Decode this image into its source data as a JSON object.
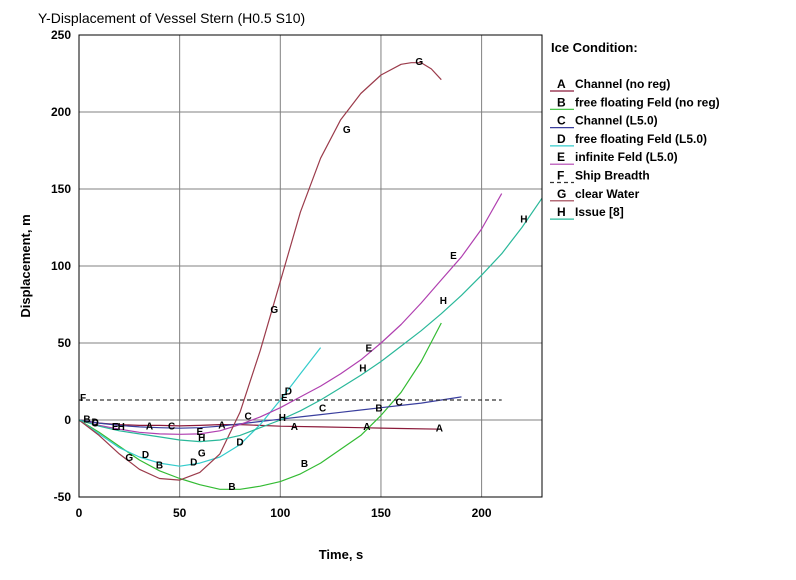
{
  "chart_data": {
    "type": "line",
    "title": "Y-Displacement of Vessel Stern (H0.5 S10)",
    "xlabel": "Time, s",
    "ylabel": "Displacement, m",
    "xlim": [
      0,
      230
    ],
    "ylim": [
      -50,
      250
    ],
    "xticks": [
      0,
      50,
      100,
      150,
      200
    ],
    "yticks": [
      -50,
      0,
      50,
      100,
      150,
      200,
      250
    ],
    "x_tick_labels": [
      "0",
      "50",
      "100",
      "150",
      "200"
    ],
    "y_tick_labels": [
      "-50",
      "0",
      "50",
      "100",
      "150",
      "200",
      "250"
    ],
    "grid": true,
    "legend_position": "right",
    "legend_title": "Ice Condition:",
    "series": [
      {
        "name": "Channel (no reg)",
        "marker": "A",
        "color": "#8b1a3a",
        "dash": "",
        "x": [
          0,
          10,
          20,
          30,
          40,
          50,
          60,
          70,
          80,
          100,
          120,
          140,
          160,
          180
        ],
        "y": [
          0,
          -2,
          -3,
          -3.5,
          -3.5,
          -3.8,
          -3.5,
          -3,
          -3,
          -4,
          -4.5,
          -5,
          -5.5,
          -6
        ]
      },
      {
        "name": "free floating Feld (no reg)",
        "marker": "B",
        "color": "#33bb33",
        "dash": "",
        "x": [
          0,
          10,
          20,
          30,
          40,
          50,
          60,
          70,
          80,
          90,
          100,
          110,
          120,
          130,
          140,
          150,
          160,
          170,
          180
        ],
        "y": [
          0,
          -8,
          -17,
          -26,
          -33,
          -38,
          -42,
          -45,
          -45,
          -43,
          -40,
          -35,
          -28,
          -19,
          -10,
          3,
          18,
          38,
          63
        ]
      },
      {
        "name": "Channel (L5.0)",
        "marker": "C",
        "color": "#3a3f9e",
        "dash": "",
        "x": [
          0,
          10,
          20,
          30,
          40,
          50,
          60,
          70,
          80,
          90,
          100,
          110,
          120,
          130,
          140,
          150,
          160,
          170,
          180,
          190
        ],
        "y": [
          0,
          -2,
          -3.5,
          -4.5,
          -5,
          -5.3,
          -5,
          -4,
          -2.5,
          -1,
          0.5,
          2,
          3.5,
          5,
          6.5,
          8,
          9.5,
          11,
          13,
          15
        ]
      },
      {
        "name": "free floating Feld (L5.0)",
        "marker": "D",
        "color": "#33cccc",
        "dash": "",
        "x": [
          0,
          10,
          20,
          30,
          40,
          50,
          60,
          70,
          80,
          90,
          100,
          110,
          120
        ],
        "y": [
          0,
          -9,
          -18,
          -24,
          -28,
          -30,
          -28,
          -24,
          -16,
          -3,
          13,
          30,
          47
        ]
      },
      {
        "name": "infinite Feld (L5.0)",
        "marker": "E",
        "color": "#b040b0",
        "dash": "",
        "x": [
          0,
          10,
          20,
          30,
          40,
          50,
          60,
          70,
          80,
          90,
          100,
          110,
          120,
          130,
          140,
          150,
          160,
          170,
          180,
          190,
          200,
          210
        ],
        "y": [
          0,
          -3.5,
          -6,
          -8,
          -9,
          -9.3,
          -9,
          -7,
          -3,
          2,
          8,
          15,
          22,
          30,
          39,
          50,
          62,
          76,
          91,
          106,
          124,
          147
        ]
      },
      {
        "name": "Ship Breadth",
        "marker": "F",
        "color": "#333333",
        "dash": "4,3",
        "x": [
          0,
          210
        ],
        "y": [
          13,
          13
        ]
      },
      {
        "name": "clear Water",
        "marker": "G",
        "color": "#9b3b4b",
        "dash": "",
        "x": [
          0,
          10,
          20,
          30,
          40,
          50,
          60,
          70,
          80,
          90,
          100,
          110,
          120,
          130,
          140,
          150,
          160,
          165,
          170,
          175,
          180
        ],
        "y": [
          0,
          -10,
          -22,
          -32,
          -38,
          -39,
          -34,
          -22,
          5,
          45,
          90,
          135,
          170,
          195,
          212,
          224,
          231,
          232,
          232,
          228,
          221
        ]
      },
      {
        "name": "Issue [8]",
        "marker": "H",
        "color": "#2ab89a",
        "dash": "",
        "x": [
          0,
          10,
          20,
          30,
          40,
          50,
          60,
          70,
          80,
          90,
          100,
          110,
          120,
          130,
          140,
          150,
          160,
          170,
          180,
          190,
          200,
          210,
          220,
          230
        ],
        "y": [
          0,
          -4,
          -7,
          -9,
          -11,
          -13,
          -14,
          -13,
          -10,
          -5,
          0,
          6,
          13,
          21,
          29,
          38,
          48,
          58,
          69,
          81,
          94,
          108,
          125,
          144
        ]
      }
    ],
    "markers": [
      {
        "s": 0,
        "text": "A",
        "x": 35,
        "y": -3.5
      },
      {
        "s": 0,
        "text": "A",
        "x": 71,
        "y": -3
      },
      {
        "s": 0,
        "text": "A",
        "x": 107,
        "y": -4
      },
      {
        "s": 0,
        "text": "A",
        "x": 143,
        "y": -4
      },
      {
        "s": 0,
        "text": "A",
        "x": 179,
        "y": -5
      },
      {
        "s": 1,
        "text": "B",
        "x": 4,
        "y": 1
      },
      {
        "s": 1,
        "text": "B",
        "x": 40,
        "y": -29
      },
      {
        "s": 1,
        "text": "B",
        "x": 76,
        "y": -43
      },
      {
        "s": 1,
        "text": "B",
        "x": 112,
        "y": -28
      },
      {
        "s": 1,
        "text": "B",
        "x": 149,
        "y": 8
      },
      {
        "s": 2,
        "text": "C",
        "x": 8,
        "y": -1.5
      },
      {
        "s": 2,
        "text": "C",
        "x": 46,
        "y": -3.5
      },
      {
        "s": 2,
        "text": "C",
        "x": 84,
        "y": 3
      },
      {
        "s": 2,
        "text": "C",
        "x": 121,
        "y": 8
      },
      {
        "s": 2,
        "text": "C",
        "x": 159,
        "y": 12
      },
      {
        "s": 3,
        "text": "D",
        "x": 8,
        "y": -1
      },
      {
        "s": 3,
        "text": "D",
        "x": 33,
        "y": -22
      },
      {
        "s": 3,
        "text": "D",
        "x": 57,
        "y": -27
      },
      {
        "s": 3,
        "text": "D",
        "x": 80,
        "y": -14
      },
      {
        "s": 3,
        "text": "D",
        "x": 104,
        "y": 19
      },
      {
        "s": 4,
        "text": "E",
        "x": 18,
        "y": -4
      },
      {
        "s": 4,
        "text": "E",
        "x": 60,
        "y": -7
      },
      {
        "s": 4,
        "text": "E",
        "x": 102,
        "y": 15
      },
      {
        "s": 4,
        "text": "E",
        "x": 144,
        "y": 47
      },
      {
        "s": 4,
        "text": "E",
        "x": 186,
        "y": 107
      },
      {
        "s": 5,
        "text": "F",
        "x": 2,
        "y": 15
      },
      {
        "s": 6,
        "text": "G",
        "x": 25,
        "y": -24
      },
      {
        "s": 6,
        "text": "G",
        "x": 61,
        "y": -21
      },
      {
        "s": 6,
        "text": "G",
        "x": 97,
        "y": 72
      },
      {
        "s": 6,
        "text": "G",
        "x": 133,
        "y": 189
      },
      {
        "s": 6,
        "text": "G",
        "x": 169,
        "y": 233
      },
      {
        "s": 7,
        "text": "H",
        "x": 21,
        "y": -4
      },
      {
        "s": 7,
        "text": "H",
        "x": 61,
        "y": -11
      },
      {
        "s": 7,
        "text": "H",
        "x": 101,
        "y": 2
      },
      {
        "s": 7,
        "text": "H",
        "x": 141,
        "y": 34
      },
      {
        "s": 7,
        "text": "H",
        "x": 181,
        "y": 78
      },
      {
        "s": 7,
        "text": "H",
        "x": 221,
        "y": 131
      }
    ]
  }
}
